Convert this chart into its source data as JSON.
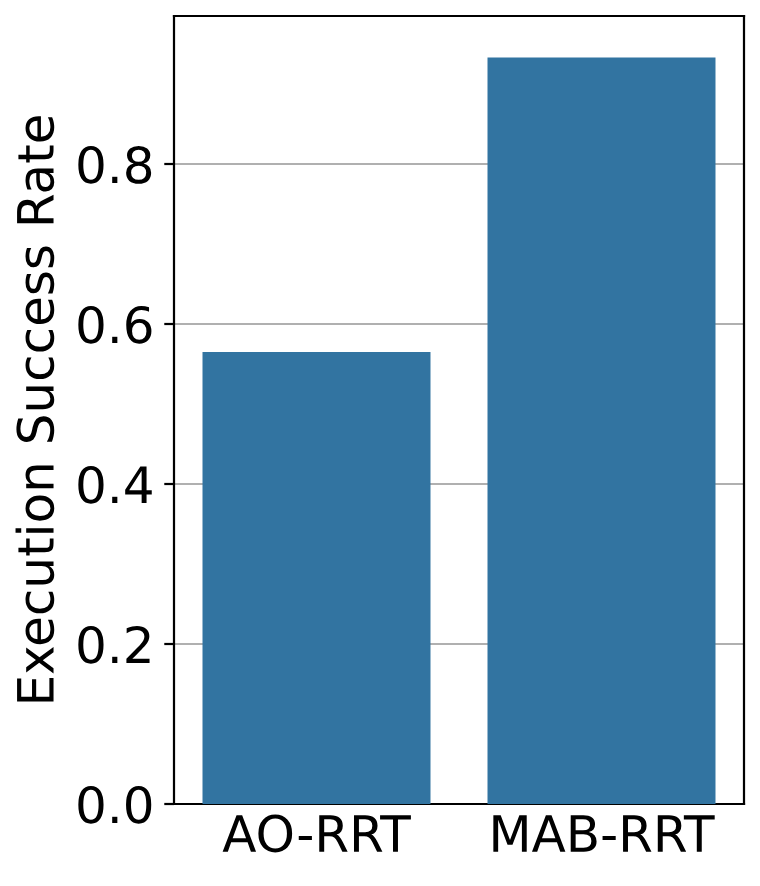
{
  "chart_data": {
    "type": "bar",
    "ylabel": "Execution Success Rate",
    "categories": [
      "AO-RRT",
      "MAB-RRT"
    ],
    "values": [
      0.565,
      0.933
    ],
    "color": "#3274a1",
    "ylim": [
      0,
      0.985
    ],
    "yticks": [
      {
        "value": 0,
        "label": "0.0"
      },
      0.2,
      0.4,
      0.6,
      0.8
    ],
    "grid": "y"
  }
}
